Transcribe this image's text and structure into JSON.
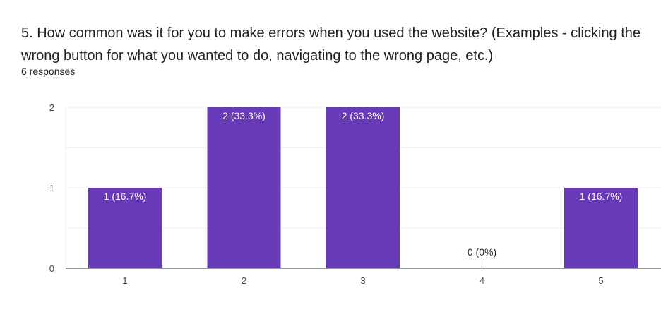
{
  "question": {
    "title": "5. How common was it for you to make errors when you used the website? (Examples - clicking the wrong button for what you wanted to do, navigating to the wrong page, etc.)",
    "responses": "6 responses"
  },
  "chart_data": {
    "type": "bar",
    "categories": [
      "1",
      "2",
      "3",
      "4",
      "5"
    ],
    "values": [
      1,
      2,
      2,
      0,
      1
    ],
    "data_labels": [
      "1 (16.7%)",
      "2 (33.3%)",
      "2 (33.3%)",
      "0 (0%)",
      "1 (16.7%)"
    ],
    "yticks": [
      0,
      1,
      2
    ],
    "ylim": [
      0,
      2
    ],
    "grid": true,
    "legend": "none",
    "colors": {
      "bar": "#673ab7",
      "grid": "#ebebeb",
      "axis": "#333333",
      "label_in_bar": "#ffffff",
      "label_out_bar": "#222222"
    }
  }
}
